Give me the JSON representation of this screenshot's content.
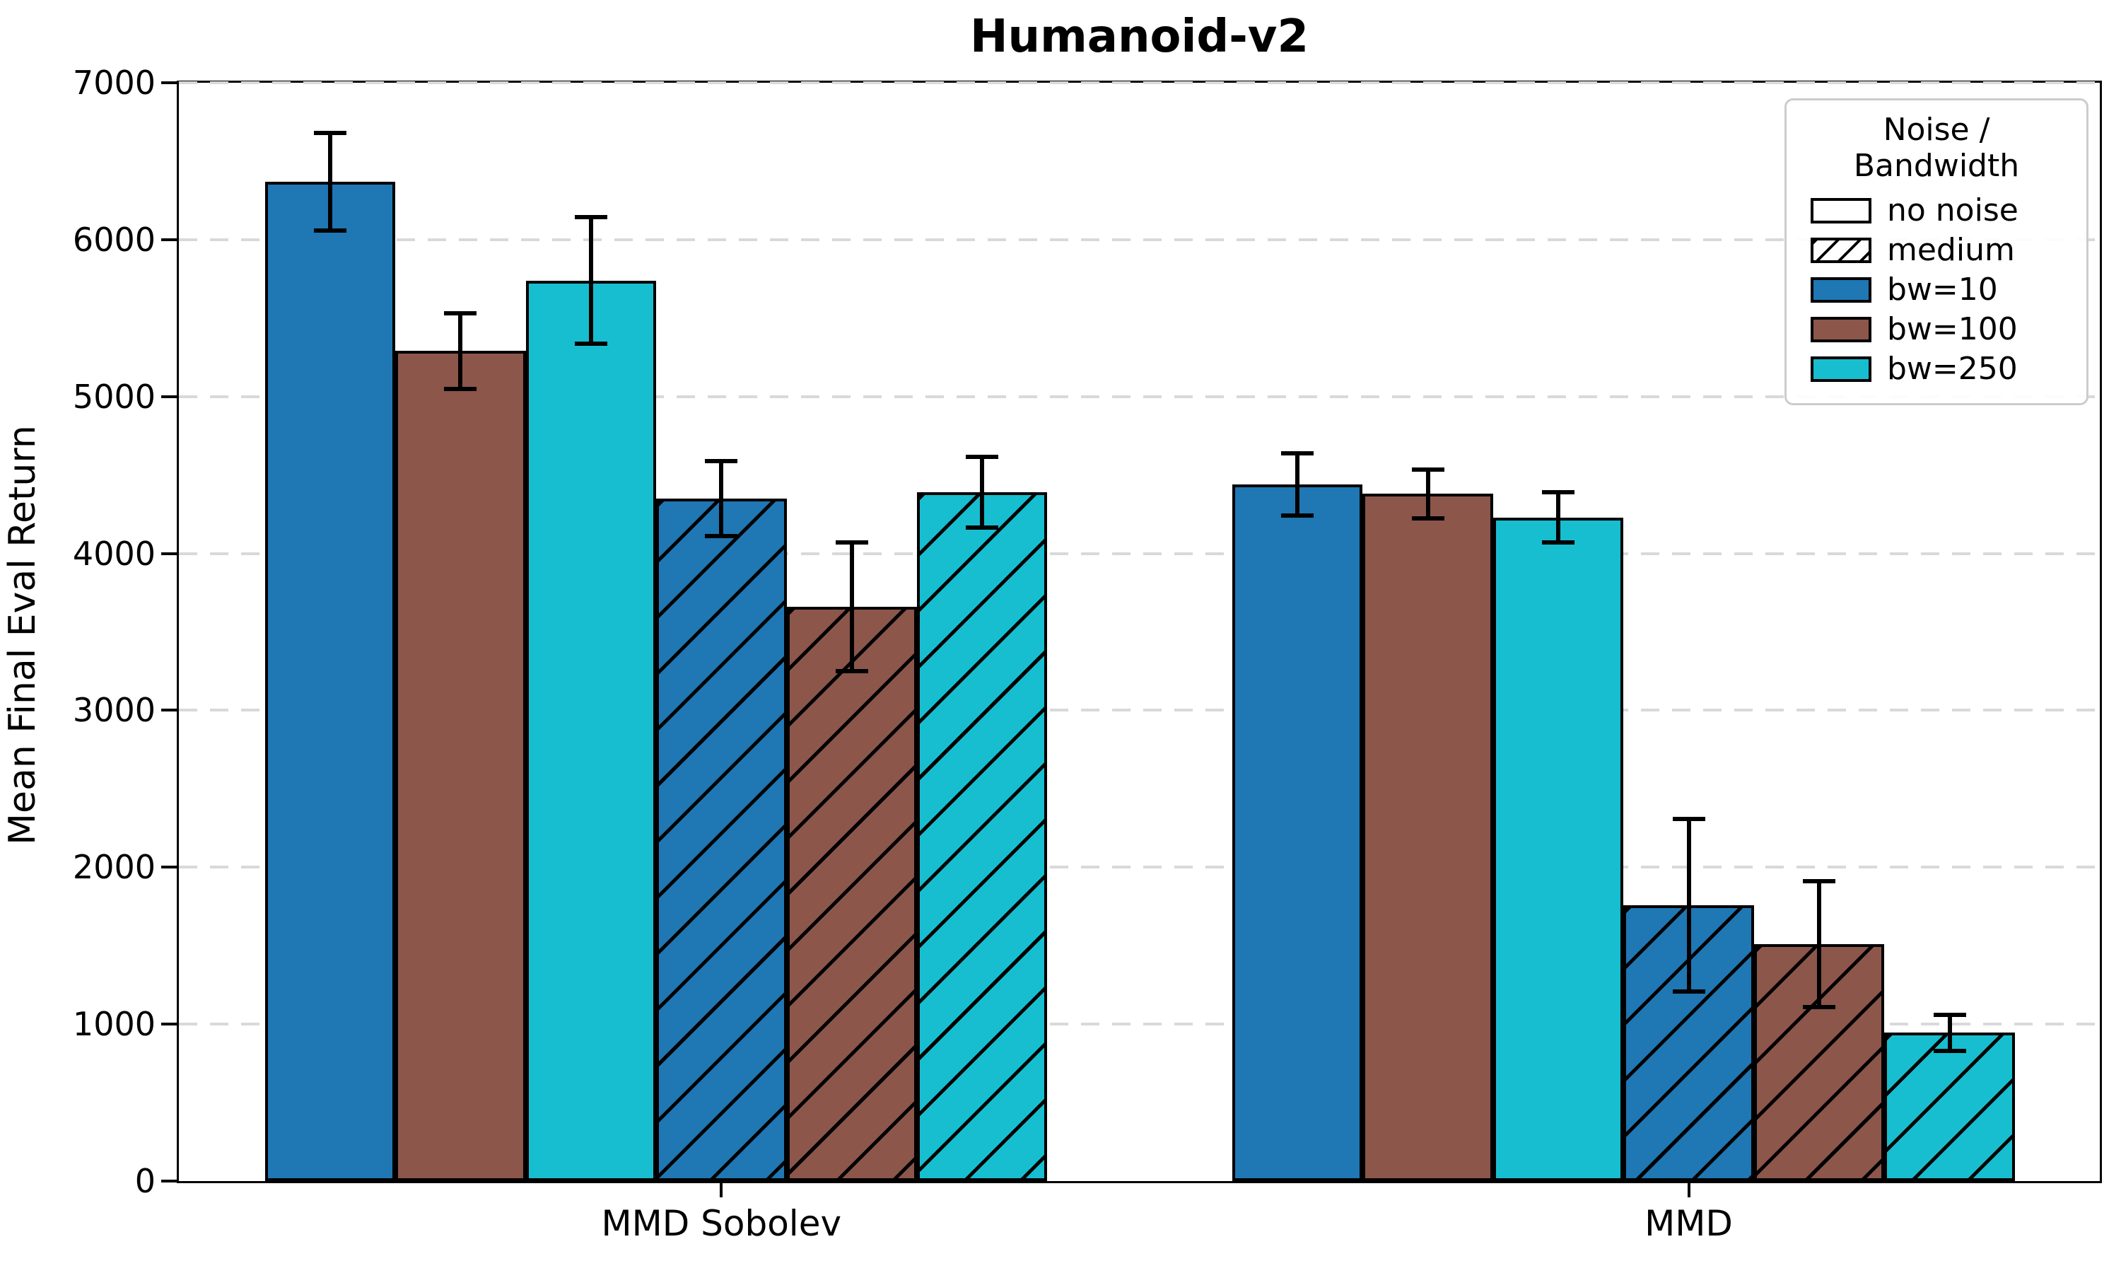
{
  "title": "Humanoid-v2",
  "chart_data": {
    "type": "bar",
    "title": "Humanoid-v2",
    "xlabel": "",
    "ylabel": "Mean Final Eval Return",
    "ylim": [
      0,
      7000
    ],
    "yticks": [
      0,
      1000,
      2000,
      3000,
      4000,
      5000,
      6000,
      7000
    ],
    "categories": [
      "MMD Sobolev",
      "MMD"
    ],
    "grid": "horizontal dashed gridlines",
    "error_bars": "symmetric, black with caps",
    "legend": {
      "title": "Noise / Bandwidth",
      "position": "upper right",
      "entries": [
        {
          "label": "no noise",
          "swatch": "outline",
          "color": "#ffffff",
          "hatch": false
        },
        {
          "label": "medium",
          "swatch": "hatch",
          "color": "#ffffff",
          "hatch": true
        },
        {
          "label": "bw=10",
          "swatch": "color",
          "color": "#1f77b4",
          "hatch": false
        },
        {
          "label": "bw=100",
          "swatch": "color",
          "color": "#8c564b",
          "hatch": false
        },
        {
          "label": "bw=250",
          "swatch": "color",
          "color": "#17becf",
          "hatch": false
        }
      ]
    },
    "series": [
      {
        "name": "no noise / bw=10",
        "noise": "no noise",
        "bandwidth": "bw=10",
        "color": "#1f77b4",
        "hatch": false,
        "values": [
          6370,
          4440
        ],
        "errors": [
          310,
          200
        ]
      },
      {
        "name": "no noise / bw=100",
        "noise": "no noise",
        "bandwidth": "bw=100",
        "color": "#8c564b",
        "hatch": false,
        "values": [
          5290,
          4380
        ],
        "errors": [
          240,
          155
        ]
      },
      {
        "name": "no noise / bw=250",
        "noise": "no noise",
        "bandwidth": "bw=250",
        "color": "#17becf",
        "hatch": false,
        "values": [
          5740,
          4230
        ],
        "errors": [
          405,
          160
        ]
      },
      {
        "name": "medium / bw=10",
        "noise": "medium",
        "bandwidth": "bw=10",
        "color": "#1f77b4",
        "hatch": true,
        "values": [
          4350,
          1760
        ],
        "errors": [
          240,
          550
        ]
      },
      {
        "name": "medium / bw=100",
        "noise": "medium",
        "bandwidth": "bw=100",
        "color": "#8c564b",
        "hatch": true,
        "values": [
          3660,
          1510
        ],
        "errors": [
          410,
          400
        ]
      },
      {
        "name": "medium / bw=250",
        "noise": "medium",
        "bandwidth": "bw=250",
        "color": "#17becf",
        "hatch": true,
        "values": [
          4390,
          945
        ],
        "errors": [
          225,
          115
        ]
      }
    ]
  },
  "colors": {
    "bar_edge": "#000000",
    "grid": "#d9d9d9",
    "legend_border": "#cccccc",
    "background": "#ffffff"
  }
}
